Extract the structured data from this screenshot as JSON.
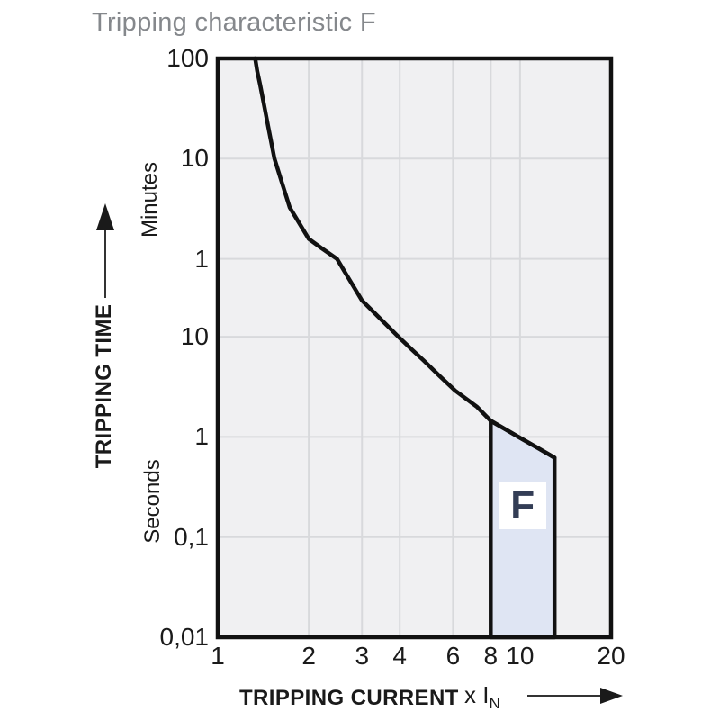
{
  "title": {
    "text": "Tripping characteristic F"
  },
  "y_axis": {
    "label": "TRIPPING TIME",
    "unit_upper": "Minutes",
    "unit_lower": "Seconds",
    "ticks": [
      {
        "label": "100",
        "seconds": 6000
      },
      {
        "label": "10",
        "seconds": 600
      },
      {
        "label": "1",
        "seconds": 60
      },
      {
        "label": "10",
        "seconds": 10
      },
      {
        "label": "1",
        "seconds": 1
      },
      {
        "label": "0,1",
        "seconds": 0.1
      },
      {
        "label": "0,01",
        "seconds": 0.01
      }
    ]
  },
  "x_axis": {
    "label": "TRIPPING CURRENT",
    "unit": "x I",
    "unit_sub": "N",
    "ticks": [
      {
        "label": "1",
        "value": 1
      },
      {
        "label": "2",
        "value": 2
      },
      {
        "label": "3",
        "value": 3
      },
      {
        "label": "4",
        "value": 4
      },
      {
        "label": "6",
        "value": 6
      },
      {
        "label": "8",
        "value": 8
      },
      {
        "label": "10",
        "value": 10
      },
      {
        "label": "20",
        "value": 20
      }
    ]
  },
  "chart_data": {
    "type": "line",
    "title": "Tripping characteristic F",
    "xlabel": "TRIPPING CURRENT (multiple of rated current IN)",
    "ylabel": "TRIPPING TIME (minutes / seconds)",
    "x_scale": "log",
    "y_scale": "log",
    "x_range": [
      1,
      20
    ],
    "y_range_seconds": [
      6000,
      0.01
    ],
    "grid": true,
    "series": [
      {
        "name": "tripping-curve",
        "points_x_in_t_seconds": [
          [
            1.33,
            6000
          ],
          [
            1.35,
            4500
          ],
          [
            1.38,
            3300
          ],
          [
            1.43,
            1900
          ],
          [
            1.47,
            1230
          ],
          [
            1.54,
            600
          ],
          [
            1.63,
            345
          ],
          [
            1.73,
            195
          ],
          [
            1.85,
            140
          ],
          [
            2.0,
            95
          ],
          [
            2.2,
            77
          ],
          [
            2.48,
            60
          ],
          [
            2.7,
            39
          ],
          [
            3.0,
            23
          ],
          [
            3.4,
            15.8
          ],
          [
            3.96,
            10
          ],
          [
            4.4,
            7.4
          ],
          [
            4.8,
            5.8
          ],
          [
            5.4,
            4.1
          ],
          [
            6.1,
            2.9
          ],
          [
            7.2,
            2.0
          ],
          [
            8,
            1.45
          ],
          [
            9,
            1.18
          ],
          [
            10,
            0.98
          ],
          [
            11.5,
            0.77
          ],
          [
            13,
            0.62
          ]
        ]
      }
    ],
    "region": {
      "label": "F",
      "x_min": 8,
      "x_max": 13,
      "top_points": [
        [
          8,
          1.45
        ],
        [
          9,
          1.18
        ],
        [
          10,
          0.98
        ],
        [
          11.5,
          0.77
        ],
        [
          13,
          0.62
        ]
      ],
      "bottom_seconds": 0.01
    },
    "colors": {
      "curve": "#111111",
      "region_fill": "#dfe5f3",
      "region_label": "#333d55",
      "plot_background": "#f0f0f2",
      "gridline": "#d8d9dc",
      "title_gray": "#85888c"
    }
  }
}
